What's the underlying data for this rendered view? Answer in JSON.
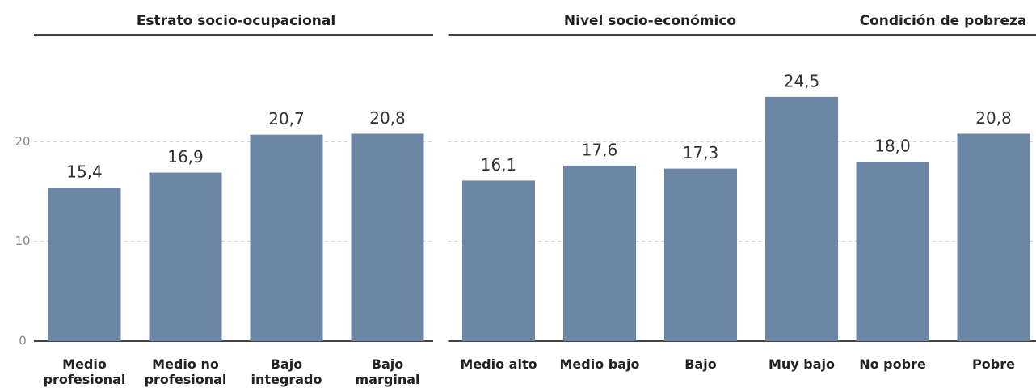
{
  "chart_data": [
    {
      "type": "bar",
      "title": "Estrato socio-ocupacional",
      "categories": [
        "Medio profesional",
        "Medio no profesional",
        "Bajo integrado",
        "Bajo marginal"
      ],
      "values": [
        15.4,
        16.9,
        20.7,
        20.8
      ],
      "value_labels": [
        "15,4",
        "16,9",
        "20,7",
        "20,8"
      ],
      "color": "#6b87a5",
      "ylim": [
        0,
        30
      ],
      "yticks": [
        0,
        10,
        20
      ],
      "grid": true
    },
    {
      "type": "bar",
      "title": "Nivel socio-económico",
      "categories": [
        "Medio alto",
        "Medio bajo",
        "Bajo",
        "Muy bajo"
      ],
      "values": [
        16.1,
        17.6,
        17.3,
        24.5
      ],
      "value_labels": [
        "16,1",
        "17,6",
        "17,3",
        "24,5"
      ],
      "color": "#6b87a5",
      "ylim": [
        0,
        30
      ],
      "grid": true
    },
    {
      "type": "bar",
      "title": "Condición de pobreza",
      "categories": [
        "No pobre",
        "Pobre"
      ],
      "values": [
        18.0,
        20.8
      ],
      "value_labels": [
        "18,0",
        "20,8"
      ],
      "color": "#6b87a5",
      "ylim": [
        0,
        30
      ],
      "grid": true
    }
  ]
}
